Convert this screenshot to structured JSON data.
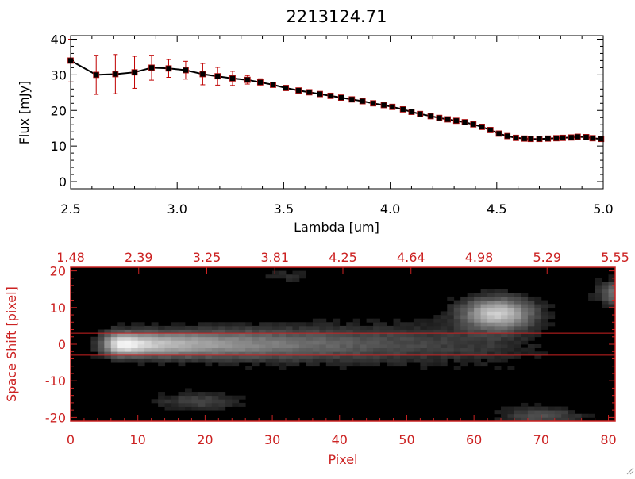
{
  "chart_data": [
    {
      "type": "line",
      "title": "2213124.71",
      "xlabel": "Lambda [um]",
      "ylabel": "Flux [mJy]",
      "xlim": [
        2.5,
        5.0
      ],
      "ylim": [
        -2,
        41
      ],
      "xticks": [
        "2.5",
        "3.0",
        "3.5",
        "4.0",
        "4.5",
        "5.0"
      ],
      "yticks": [
        "0",
        "10",
        "20",
        "30",
        "40"
      ],
      "line_color": "#000000",
      "marker_color": "#b01010",
      "errorbar_color": "#c00000",
      "series": [
        {
          "x": [
            2.5,
            2.62,
            2.71,
            2.8,
            2.88,
            2.96,
            3.04,
            3.12,
            3.19,
            3.26,
            3.33,
            3.39,
            3.45,
            3.51,
            3.57,
            3.62,
            3.67,
            3.72,
            3.77,
            3.82,
            3.87,
            3.92,
            3.97,
            4.01,
            4.06,
            4.1,
            4.14,
            4.19,
            4.23,
            4.27,
            4.31,
            4.35,
            4.39,
            4.43,
            4.47,
            4.51,
            4.55,
            4.59,
            4.63,
            4.66,
            4.7,
            4.74,
            4.78,
            4.81,
            4.85,
            4.88,
            4.92,
            4.95,
            4.99
          ],
          "y": [
            34,
            30,
            30.2,
            30.7,
            32,
            31.8,
            31.3,
            30.2,
            29.6,
            29,
            28.6,
            27.9,
            27.2,
            26.3,
            25.6,
            25.1,
            24.6,
            24.1,
            23.6,
            23.1,
            22.6,
            22.0,
            21.5,
            21.0,
            20.3,
            19.6,
            19.0,
            18.4,
            17.9,
            17.5,
            17.1,
            16.7,
            16.1,
            15.4,
            14.5,
            13.5,
            12.8,
            12.3,
            12.1,
            12.0,
            12.0,
            12.1,
            12.2,
            12.3,
            12.4,
            12.6,
            12.5,
            12.2,
            12.0
          ],
          "yerr": [
            6,
            5.5,
            5.5,
            4.5,
            3.5,
            2.5,
            2.5,
            3,
            2.5,
            2,
            1.2,
            1,
            0.6,
            0.6,
            0.6,
            0.6,
            0.6,
            0.6,
            0.6,
            0.6,
            0.6,
            0.6,
            0.6,
            0.6,
            0.6,
            0.6,
            0.6,
            0.6,
            0.6,
            0.6,
            0.6,
            0.6,
            0.6,
            0.6,
            0.6,
            0.6,
            0.6,
            0.6,
            0.6,
            0.6,
            0.6,
            0.6,
            0.6,
            0.6,
            0.6,
            0.6,
            0.6,
            0.6,
            0.6
          ]
        }
      ]
    },
    {
      "type": "heatmap",
      "xlabel": "Pixel",
      "ylabel": "Space Shift [pixel]",
      "xlim": [
        0,
        81
      ],
      "ylim": [
        -21,
        21
      ],
      "xticks": [
        "0",
        "10",
        "20",
        "30",
        "40",
        "50",
        "60",
        "70",
        "80"
      ],
      "yticks": [
        "-20",
        "-10",
        "0",
        "10",
        "20"
      ],
      "top_ticks": [
        "1.48",
        "2.39",
        "3.25",
        "3.81",
        "4.25",
        "4.64",
        "4.98",
        "5.29",
        "5.55"
      ],
      "guide_lines_y": [
        3,
        -3
      ],
      "colormap": "grayscale",
      "frame_color": "#cc2222",
      "sources": [
        {
          "x_start": 3,
          "x_end": 72,
          "y": 0,
          "peak_x": 8,
          "peak": 1.0,
          "width_y": 2.2
        },
        {
          "x": 63.5,
          "y": 8.5,
          "sx": 3.5,
          "sy": 2.8,
          "amp": 0.75
        },
        {
          "x": 81,
          "y": 14,
          "sx": 1.8,
          "sy": 2.2,
          "amp": 0.35
        },
        {
          "x": 19,
          "y": -15.5,
          "sx": 4,
          "sy": 1.6,
          "amp": 0.2
        },
        {
          "x": 70,
          "y": -19.5,
          "sx": 4,
          "sy": 1.6,
          "amp": 0.25
        },
        {
          "x": 32,
          "y": 18.5,
          "sx": 2.5,
          "sy": 1.2,
          "amp": 0.1
        }
      ]
    }
  ]
}
